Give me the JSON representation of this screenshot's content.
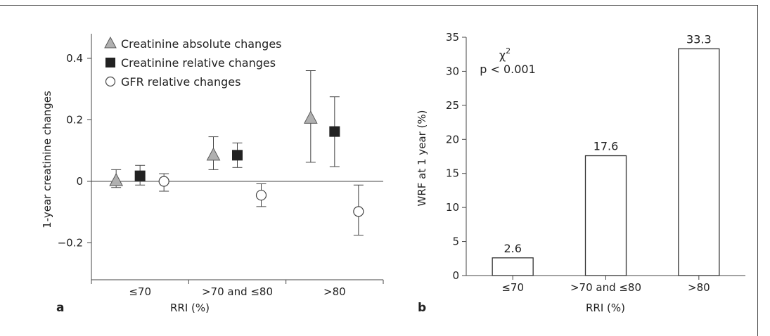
{
  "panel_a": {
    "panel_label": "a",
    "chart_data": {
      "type": "scatter",
      "categories": [
        "≤70",
        ">70 and ≤80",
        ">80"
      ],
      "xlabel": "RRI (%)",
      "ylabel": "1-year creatinine changes",
      "ylim": [
        -0.32,
        0.48
      ],
      "yticks": [
        0.4,
        0.2,
        0,
        -0.2
      ],
      "ytick_labels": [
        "0.4",
        "0.2",
        "0",
        "−0.2"
      ],
      "grid": false,
      "legend_position": "top-left",
      "series": [
        {
          "name": "Creatinine absolute changes",
          "marker": "triangle",
          "color": "#b0b0b0",
          "values": [
            0.002,
            0.085,
            0.205
          ],
          "err_low": [
            -0.02,
            0.038,
            0.062
          ],
          "err_high": [
            0.038,
            0.145,
            0.36
          ]
        },
        {
          "name": "Creatinine relative changes",
          "marker": "square",
          "color": "#222222",
          "values": [
            0.018,
            0.085,
            0.162
          ],
          "err_low": [
            -0.012,
            0.045,
            0.048
          ],
          "err_high": [
            0.052,
            0.125,
            0.275
          ]
        },
        {
          "name": "GFR relative changes",
          "marker": "circle",
          "color": "#ffffff",
          "values": [
            0.0,
            -0.045,
            -0.098
          ],
          "err_low": [
            -0.032,
            -0.082,
            -0.175
          ],
          "err_high": [
            0.025,
            -0.008,
            -0.012
          ]
        }
      ]
    }
  },
  "panel_b": {
    "panel_label": "b",
    "chart_data": {
      "type": "bar",
      "categories": [
        "≤70",
        ">70 and ≤80",
        ">80"
      ],
      "values": [
        2.6,
        17.6,
        33.3
      ],
      "data_labels": [
        "2.6",
        "17.6",
        "33.3"
      ],
      "xlabel": "RRI (%)",
      "ylabel": "WRF at 1 year (%)",
      "ylim": [
        0,
        35
      ],
      "yticks": [
        0,
        5,
        10,
        15,
        20,
        25,
        30,
        35
      ],
      "annotation": {
        "line1": "χ",
        "superscript": "2",
        "line2": "p < 0.001"
      },
      "bar_color": "#ffffff",
      "grid": false
    }
  }
}
